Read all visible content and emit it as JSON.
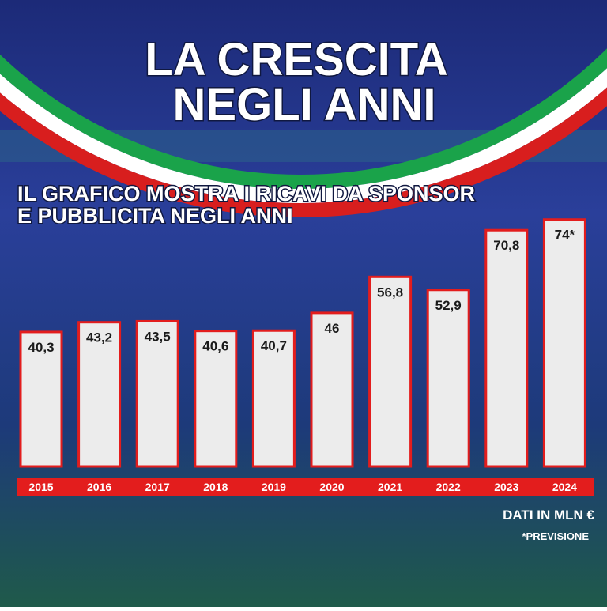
{
  "chart_data": {
    "type": "bar",
    "title": [
      "LA CRESCITA",
      "NEGLI ANNI"
    ],
    "subtitle": [
      "IL GRAFICO MOSTRA I RICAVI DA SPONSOR",
      "E PUBBLICITA NEGLI ANNI"
    ],
    "categories": [
      "2015",
      "2016",
      "2017",
      "2018",
      "2019",
      "2020",
      "2021",
      "2022",
      "2023",
      "2024"
    ],
    "values": [
      40.3,
      43.2,
      43.5,
      40.6,
      40.7,
      46,
      56.8,
      52.9,
      70.8,
      74
    ],
    "value_labels": [
      "40,3",
      "43,2",
      "43,5",
      "40,6",
      "40,7",
      "46",
      "56,8",
      "52,9",
      "70,8",
      "74*"
    ],
    "color": "#ececec",
    "unit_note": "DATI IN MLN €",
    "footnote": "*PREVISIONE"
  }
}
